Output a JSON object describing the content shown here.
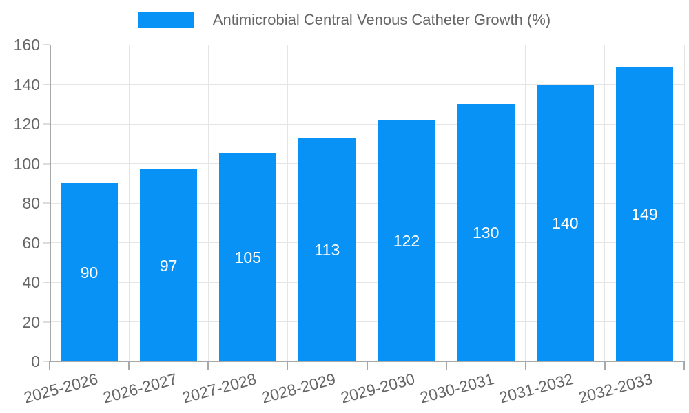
{
  "legend": {
    "swatch_icon": "legend-swatch-rect"
  },
  "chart_data": {
    "type": "bar",
    "title": "Antimicrobial Central Venous Catheter Growth (%)",
    "categories": [
      "2025-2026",
      "2026-2027",
      "2027-2028",
      "2028-2029",
      "2029-2030",
      "2030-2031",
      "2031-2032",
      "2032-2033"
    ],
    "values": [
      90,
      97,
      105,
      113,
      122,
      130,
      140,
      149
    ],
    "xlabel": "",
    "ylabel": "",
    "ylim": [
      0,
      160
    ],
    "ytick_step": 20,
    "yticks": [
      0,
      20,
      40,
      60,
      80,
      100,
      120,
      140,
      160
    ],
    "grid": true,
    "legend_position": "top-center",
    "value_labels": "inside-center",
    "x_label_rotation_deg": -15,
    "colors": {
      "bar": "#0992f5",
      "value_label": "#ffffff",
      "axis_text": "#666666",
      "gridline": "#e5e5e5",
      "axis_line": "#a8a8a8",
      "x_tick": "#a8a8a8",
      "y_tick": "#dcdcdc",
      "background": "#ffffff"
    }
  }
}
